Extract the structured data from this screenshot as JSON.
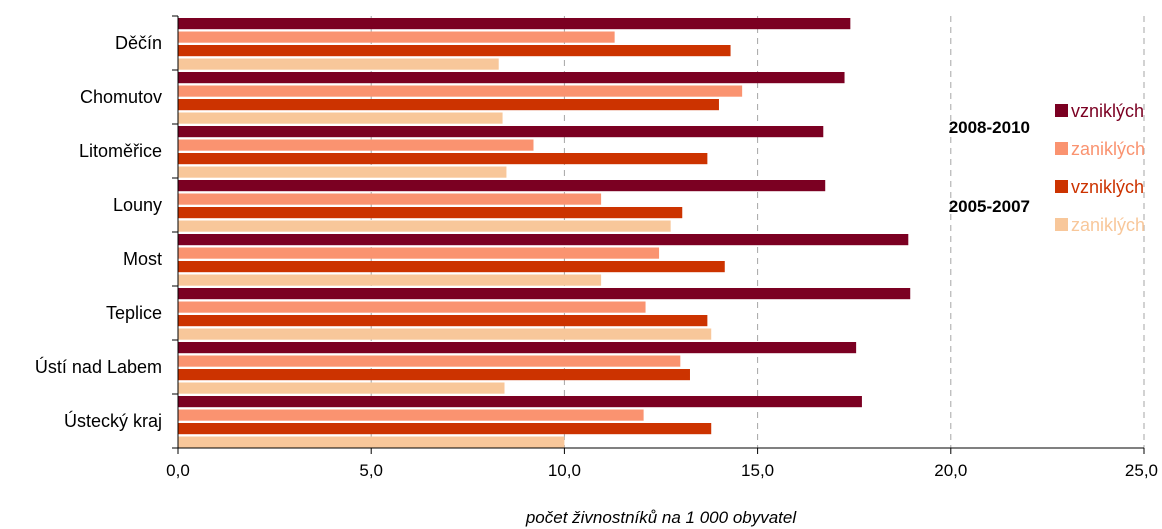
{
  "chart_data": {
    "type": "bar",
    "orientation": "horizontal",
    "categories": [
      "Děčín",
      "Chomutov",
      "Litoměřice",
      "Louny",
      "Most",
      "Teplice",
      "Ústí nad Labem",
      "Ústecký kraj"
    ],
    "series": [
      {
        "name": "vzniklých",
        "period": "2008-2010",
        "color": "#7b0022",
        "values": [
          17.4,
          17.25,
          16.7,
          16.75,
          18.9,
          18.95,
          17.55,
          17.7
        ]
      },
      {
        "name": "zaniklých",
        "period": "2008-2010",
        "color": "#fa9370",
        "values": [
          11.3,
          14.6,
          9.2,
          10.95,
          12.45,
          12.1,
          13.0,
          12.05
        ]
      },
      {
        "name": "vzniklých",
        "period": "2005-2007",
        "color": "#cc3300",
        "values": [
          14.3,
          14.0,
          13.7,
          13.05,
          14.15,
          13.7,
          13.25,
          13.8
        ]
      },
      {
        "name": "zaniklých",
        "period": "2005-2007",
        "color": "#f8c79a",
        "values": [
          8.3,
          8.4,
          8.5,
          12.75,
          10.95,
          13.8,
          8.45,
          10.0
        ]
      }
    ],
    "periods": [
      "2008-2010",
      "2005-2007"
    ],
    "xlim": [
      0,
      25
    ],
    "xticks": [
      "0,0",
      "5,0",
      "10,0",
      "15,0",
      "20,0",
      "25,0"
    ],
    "xlabel": "počet živnostníků na 1 000 obyvatel",
    "ylabel": "",
    "title": "",
    "grid": "vertical dashed",
    "legend_position": "right"
  }
}
